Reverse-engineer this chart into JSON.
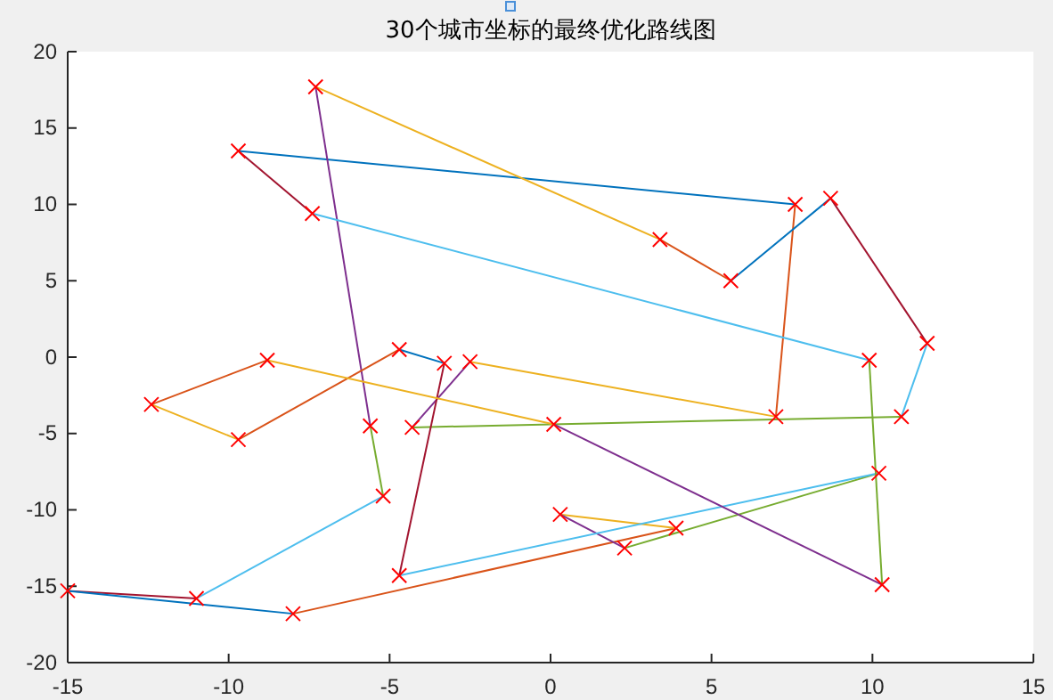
{
  "chart_data": {
    "type": "line",
    "title": "30个城市坐标的最终优化路线图",
    "xlim": [
      -15,
      15
    ],
    "ylim": [
      -20,
      20
    ],
    "xticks": [
      -15,
      -10,
      -5,
      0,
      5,
      10,
      15
    ],
    "yticks": [
      -20,
      -15,
      -10,
      -5,
      0,
      5,
      10,
      15,
      20
    ],
    "series": [
      {
        "color": "#0072bd",
        "x": [
          -9.7,
          7.6
        ],
        "values": [
          13.5,
          10.0
        ]
      },
      {
        "color": "#d95319",
        "x": [
          7.6,
          7.0
        ],
        "values": [
          10.0,
          -3.9
        ]
      },
      {
        "color": "#edb120",
        "x": [
          7.0,
          -2.5
        ],
        "values": [
          -3.9,
          -0.3
        ]
      },
      {
        "color": "#7e2f8e",
        "x": [
          -2.5,
          -4.3
        ],
        "values": [
          -0.3,
          -4.6
        ]
      },
      {
        "color": "#77ac30",
        "x": [
          -4.3,
          10.9
        ],
        "values": [
          -4.6,
          -3.9
        ]
      },
      {
        "color": "#4dbeee",
        "x": [
          10.9,
          11.7
        ],
        "values": [
          -3.9,
          0.9
        ]
      },
      {
        "color": "#a2142f",
        "x": [
          11.7,
          8.7
        ],
        "values": [
          0.9,
          10.4
        ]
      },
      {
        "color": "#0072bd",
        "x": [
          8.7,
          5.6
        ],
        "values": [
          10.4,
          5.0
        ]
      },
      {
        "color": "#d95319",
        "x": [
          5.6,
          3.4
        ],
        "values": [
          5.0,
          7.7
        ]
      },
      {
        "color": "#edb120",
        "x": [
          3.4,
          -7.3
        ],
        "values": [
          7.7,
          17.7
        ]
      },
      {
        "color": "#7e2f8e",
        "x": [
          -7.3,
          -5.6
        ],
        "values": [
          17.7,
          -4.5
        ]
      },
      {
        "color": "#77ac30",
        "x": [
          -5.6,
          -5.2
        ],
        "values": [
          -4.5,
          -9.1
        ]
      },
      {
        "color": "#4dbeee",
        "x": [
          -5.2,
          -11.0
        ],
        "values": [
          -9.1,
          -15.8
        ]
      },
      {
        "color": "#a2142f",
        "x": [
          -11.0,
          -15.0
        ],
        "values": [
          -15.8,
          -15.3
        ]
      },
      {
        "color": "#0072bd",
        "x": [
          -15.0,
          -8.0
        ],
        "values": [
          -15.3,
          -16.8
        ]
      },
      {
        "color": "#d95319",
        "x": [
          -8.0,
          3.9
        ],
        "values": [
          -16.8,
          -11.2
        ]
      },
      {
        "color": "#edb120",
        "x": [
          3.9,
          0.3
        ],
        "values": [
          -11.2,
          -10.3
        ]
      },
      {
        "color": "#7e2f8e",
        "x": [
          0.3,
          2.3
        ],
        "values": [
          -10.3,
          -12.5
        ]
      },
      {
        "color": "#77ac30",
        "x": [
          2.3,
          10.2
        ],
        "values": [
          -12.5,
          -7.6
        ]
      },
      {
        "color": "#4dbeee",
        "x": [
          10.2,
          -4.7
        ],
        "values": [
          -7.6,
          -14.3
        ]
      },
      {
        "color": "#a2142f",
        "x": [
          -4.7,
          -3.3
        ],
        "values": [
          -14.3,
          -0.4
        ]
      },
      {
        "color": "#0072bd",
        "x": [
          -3.3,
          -4.7
        ],
        "values": [
          -0.4,
          0.5
        ]
      },
      {
        "color": "#d95319",
        "x": [
          -4.7,
          -9.7
        ],
        "values": [
          0.5,
          -5.4
        ]
      },
      {
        "color": "#edb120",
        "x": [
          -9.7,
          -12.4
        ],
        "values": [
          -5.4,
          -3.1
        ]
      },
      {
        "color": "#d95319",
        "x": [
          -12.4,
          -8.8
        ],
        "values": [
          -3.1,
          -0.2
        ]
      },
      {
        "color": "#edb120",
        "x": [
          -8.8,
          0.1
        ],
        "values": [
          -0.2,
          -4.4
        ]
      },
      {
        "color": "#7e2f8e",
        "x": [
          0.1,
          10.3
        ],
        "values": [
          -4.4,
          -14.9
        ]
      },
      {
        "color": "#77ac30",
        "x": [
          10.3,
          9.9
        ],
        "values": [
          -14.9,
          -0.2
        ]
      },
      {
        "color": "#4dbeee",
        "x": [
          9.9,
          -7.4
        ],
        "values": [
          -0.2,
          9.4
        ]
      },
      {
        "color": "#a2142f",
        "x": [
          -7.4,
          -9.7
        ],
        "values": [
          9.4,
          13.5
        ]
      },
      {
        "type": "scatter",
        "marker": "cross",
        "color": "#ff0000",
        "x": [
          -9.7,
          -7.3,
          -7.4,
          7.6,
          8.7,
          3.4,
          5.6,
          11.7,
          9.9,
          -8.8,
          -12.4,
          -9.7,
          -4.7,
          -3.3,
          -2.5,
          -5.6,
          -4.3,
          -5.2,
          -4.7,
          -15.0,
          -11.0,
          -8.0,
          7.0,
          10.9,
          0.1,
          10.2,
          10.3,
          0.3,
          3.9,
          2.3
        ],
        "values": [
          13.5,
          17.7,
          9.4,
          10.0,
          10.4,
          7.7,
          5.0,
          0.9,
          -0.2,
          -0.2,
          -3.1,
          -5.4,
          0.5,
          -0.4,
          -0.3,
          -4.5,
          -4.6,
          -9.1,
          -14.3,
          -15.3,
          -15.8,
          -16.8,
          -3.9,
          -3.9,
          -4.4,
          -7.6,
          -14.9,
          -10.3,
          -11.2,
          -12.5
        ]
      }
    ]
  }
}
